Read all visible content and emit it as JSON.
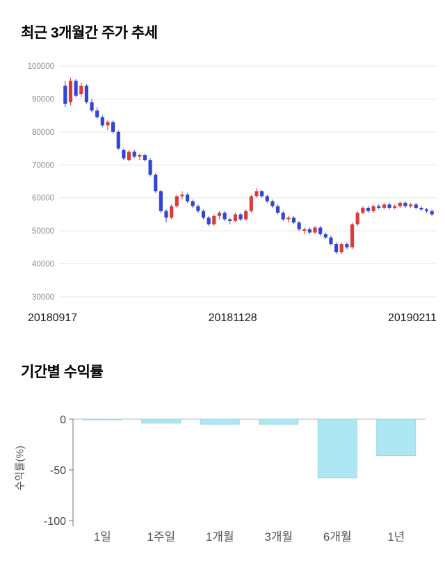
{
  "page": {
    "background": "#ffffff"
  },
  "chart_data": [
    {
      "type": "candlestick",
      "title": "최근 3개월간 주가 추세",
      "x_axis_labels": [
        "20180917",
        "20181128",
        "20190211"
      ],
      "y_ticks": [
        100000,
        90000,
        80000,
        70000,
        60000,
        50000,
        40000,
        30000
      ],
      "ylim": [
        30000,
        100000
      ],
      "grid": true,
      "up_color": "#dd3b3b",
      "down_color": "#3246d3",
      "candles_format": [
        "open",
        "high",
        "low",
        "close"
      ],
      "candles": [
        [
          94000,
          95500,
          87500,
          88500
        ],
        [
          89000,
          96500,
          88000,
          95500
        ],
        [
          95500,
          96000,
          90500,
          91000
        ],
        [
          91500,
          95000,
          90500,
          94000
        ],
        [
          94000,
          94500,
          88500,
          89000
        ],
        [
          89000,
          90000,
          86000,
          86500
        ],
        [
          86500,
          87500,
          84000,
          84500
        ],
        [
          84500,
          85000,
          81500,
          82000
        ],
        [
          82000,
          83500,
          80500,
          83000
        ],
        [
          83000,
          83500,
          79500,
          80000
        ],
        [
          80000,
          80500,
          74500,
          75000
        ],
        [
          74500,
          75000,
          71500,
          72000
        ],
        [
          71500,
          74500,
          71000,
          74000
        ],
        [
          74000,
          74500,
          72000,
          72500
        ],
        [
          72500,
          73500,
          71500,
          73000
        ],
        [
          73000,
          73500,
          71000,
          71500
        ],
        [
          71500,
          72000,
          66500,
          67000
        ],
        [
          67000,
          67500,
          61500,
          62000
        ],
        [
          62000,
          62500,
          55500,
          56000
        ],
        [
          56000,
          56500,
          52500,
          54000
        ],
        [
          54000,
          58000,
          53500,
          57500
        ],
        [
          57500,
          61000,
          57000,
          60500
        ],
        [
          60500,
          62000,
          59500,
          61000
        ],
        [
          61000,
          61500,
          58500,
          59000
        ],
        [
          59000,
          59500,
          57000,
          57500
        ],
        [
          57500,
          58000,
          55500,
          56000
        ],
        [
          56000,
          56500,
          53500,
          54000
        ],
        [
          54000,
          54500,
          51500,
          52000
        ],
        [
          52000,
          55000,
          51500,
          54500
        ],
        [
          54500,
          56000,
          53500,
          55500
        ],
        [
          55500,
          56000,
          53000,
          53500
        ],
        [
          53500,
          54000,
          52000,
          53000
        ],
        [
          53000,
          55500,
          52500,
          55000
        ],
        [
          55000,
          55500,
          53000,
          53500
        ],
        [
          53500,
          56500,
          53000,
          56000
        ],
        [
          56000,
          61000,
          55500,
          60500
        ],
        [
          60500,
          63000,
          60000,
          62000
        ],
        [
          62000,
          62500,
          60000,
          60500
        ],
        [
          60500,
          61000,
          58500,
          59000
        ],
        [
          59000,
          59500,
          57000,
          57500
        ],
        [
          57500,
          58000,
          55000,
          55500
        ],
        [
          55500,
          56000,
          53000,
          53500
        ],
        [
          53500,
          54500,
          52500,
          54000
        ],
        [
          54000,
          54500,
          52000,
          52500
        ],
        [
          52500,
          53000,
          50000,
          50500
        ],
        [
          50000,
          51000,
          49000,
          50500
        ],
        [
          50500,
          51000,
          49000,
          49500
        ],
        [
          49500,
          51500,
          49000,
          51000
        ],
        [
          51000,
          51500,
          48500,
          49000
        ],
        [
          49000,
          49500,
          47500,
          48000
        ],
        [
          48000,
          48500,
          45500,
          46000
        ],
        [
          46000,
          46500,
          43000,
          43500
        ],
        [
          43500,
          46500,
          43000,
          46000
        ],
        [
          46000,
          46500,
          44500,
          45000
        ],
        [
          45000,
          52500,
          44500,
          52000
        ],
        [
          52000,
          56000,
          51500,
          55500
        ],
        [
          55500,
          57500,
          55000,
          57000
        ],
        [
          57000,
          57500,
          55500,
          56000
        ],
        [
          56000,
          58000,
          55500,
          57500
        ],
        [
          57500,
          58000,
          56500,
          57000
        ],
        [
          57000,
          58500,
          56500,
          58000
        ],
        [
          58000,
          58500,
          56500,
          57000
        ],
        [
          57000,
          58000,
          56500,
          57500
        ],
        [
          57500,
          59000,
          57000,
          58500
        ],
        [
          58500,
          59000,
          57000,
          57500
        ],
        [
          57500,
          58500,
          57000,
          58000
        ],
        [
          58000,
          58500,
          56500,
          57000
        ],
        [
          57000,
          57500,
          56000,
          56500
        ],
        [
          56500,
          57000,
          55500,
          56000
        ],
        [
          56000,
          56500,
          54500,
          55000
        ]
      ]
    },
    {
      "type": "bar",
      "title": "기간별 수익률",
      "ylabel": "수익률(%)",
      "categories": [
        "1일",
        "1주일",
        "1개월",
        "3개월",
        "6개월",
        "1년"
      ],
      "values": [
        -0.5,
        -4,
        -5,
        -5,
        -58,
        -36
      ],
      "y_ticks": [
        0,
        -50,
        -100
      ],
      "ylim": [
        -100,
        0
      ],
      "bar_fill": "#aee6f2",
      "bar_stroke": "#93d9ea"
    }
  ]
}
